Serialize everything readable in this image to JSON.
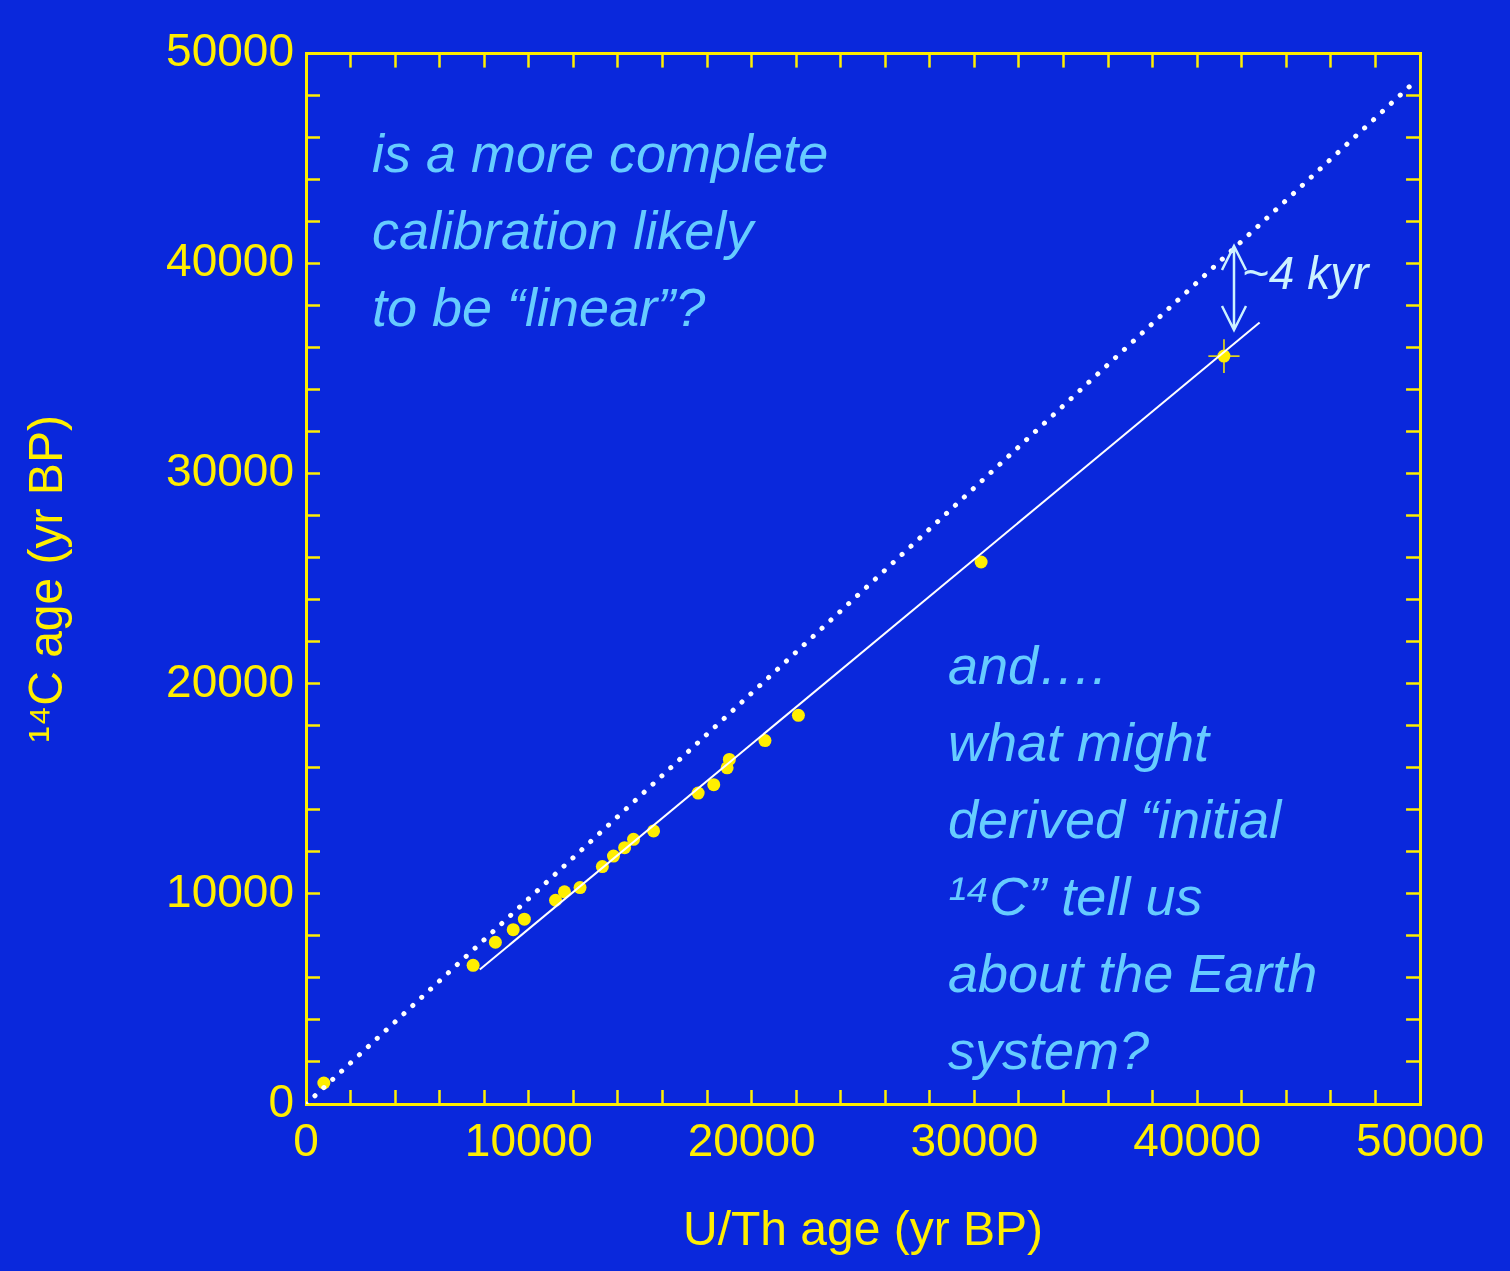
{
  "chart_data": {
    "type": "scatter",
    "xlabel": "U/Th age (yr BP)",
    "ylabel": "¹⁴C age (yr BP)",
    "xlim": [
      0,
      50000
    ],
    "ylim": [
      0,
      50000
    ],
    "xticks": [
      0,
      {
        "value": 2000,
        "label": null
      },
      {
        "value": 4000,
        "label": null
      },
      {
        "value": 6000,
        "label": null
      },
      {
        "value": 8000,
        "label": null
      },
      10000,
      {
        "value": 12000,
        "label": null
      },
      {
        "value": 14000,
        "label": null
      },
      {
        "value": 16000,
        "label": null
      },
      {
        "value": 18000,
        "label": null
      },
      20000,
      {
        "value": 22000,
        "label": null
      },
      {
        "value": 24000,
        "label": null
      },
      {
        "value": 26000,
        "label": null
      },
      {
        "value": 28000,
        "label": null
      },
      30000,
      {
        "value": 32000,
        "label": null
      },
      {
        "value": 34000,
        "label": null
      },
      {
        "value": 36000,
        "label": null
      },
      {
        "value": 38000,
        "label": null
      },
      40000,
      {
        "value": 42000,
        "label": null
      },
      {
        "value": 44000,
        "label": null
      },
      {
        "value": 46000,
        "label": null
      },
      {
        "value": 48000,
        "label": null
      },
      50000
    ],
    "yticks": [
      0,
      {
        "value": 2000,
        "label": null
      },
      {
        "value": 4000,
        "label": null
      },
      {
        "value": 6000,
        "label": null
      },
      {
        "value": 8000,
        "label": null
      },
      10000,
      {
        "value": 12000,
        "label": null
      },
      {
        "value": 14000,
        "label": null
      },
      {
        "value": 16000,
        "label": null
      },
      {
        "value": 18000,
        "label": null
      },
      20000,
      {
        "value": 22000,
        "label": null
      },
      {
        "value": 24000,
        "label": null
      },
      {
        "value": 26000,
        "label": null
      },
      {
        "value": 28000,
        "label": null
      },
      30000,
      {
        "value": 32000,
        "label": null
      },
      {
        "value": 34000,
        "label": null
      },
      {
        "value": 36000,
        "label": null
      },
      {
        "value": 38000,
        "label": null
      },
      40000,
      {
        "value": 42000,
        "label": null
      },
      {
        "value": 44000,
        "label": null
      },
      {
        "value": 46000,
        "label": null
      },
      {
        "value": 48000,
        "label": null
      },
      50000
    ],
    "grid": false,
    "legend": false,
    "marker": "circle",
    "series": [
      {
        "type": "line",
        "color": "#ffffff",
        "line_style": "dotted",
        "marker": "none",
        "x": [
          0,
          49800
        ],
        "values": [
          0,
          48700
        ]
      },
      {
        "type": "line",
        "color": "#ffffff",
        "line_style": "solid",
        "marker": "none",
        "x": [
          7800,
          42800
        ],
        "values": [
          6400,
          37200
        ]
      },
      {
        "color": "#ffee00",
        "x": [
          800,
          7500,
          8500,
          9300,
          9800,
          11200,
          11600,
          12300,
          13300,
          13800,
          14300,
          14700,
          15600,
          17600,
          18300,
          18900,
          19000,
          20600,
          22100,
          30300,
          41200
        ],
        "values": [
          1000,
          6600,
          7700,
          8300,
          8800,
          9700,
          10100,
          10300,
          11300,
          11800,
          12200,
          12600,
          13000,
          14800,
          15200,
          16000,
          16400,
          17300,
          18500,
          25800,
          35600
        ],
        "errors": [
          null,
          null,
          null,
          null,
          null,
          null,
          null,
          null,
          null,
          null,
          null,
          null,
          null,
          null,
          null,
          null,
          null,
          null,
          null,
          null,
          800
        ],
        "xerrors": [
          null,
          null,
          null,
          null,
          null,
          null,
          null,
          null,
          null,
          null,
          null,
          null,
          null,
          null,
          null,
          null,
          null,
          null,
          null,
          null,
          700
        ]
      }
    ],
    "annotations": [
      "is a more complete\ncalibration likely\nto be “linear”?",
      "and….\nwhat might\nderived “initial\n¹⁴C” tell us\nabout the Earth\nsystem?",
      "~4 kyr"
    ]
  }
}
